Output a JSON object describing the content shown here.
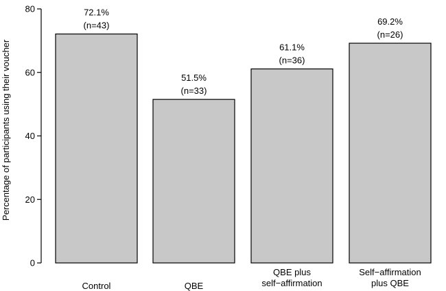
{
  "chart_data": {
    "type": "bar",
    "title": "",
    "xlabel": "",
    "ylabel": "Percentage of participants using their voucher",
    "ylim": [
      0,
      80
    ],
    "yticks": [
      0,
      20,
      40,
      60,
      80
    ],
    "grid": false,
    "categories": [
      [
        "Control"
      ],
      [
        "QBE"
      ],
      [
        "QBE plus",
        "self−affirmation"
      ],
      [
        "Self−affirmation",
        "plus QBE"
      ]
    ],
    "values": [
      72.1,
      51.5,
      61.1,
      69.2
    ],
    "data_labels": [
      [
        "72.1%",
        "(n=43)"
      ],
      [
        "51.5%",
        "(n=33)"
      ],
      [
        "61.1%",
        "(n=36)"
      ],
      [
        "69.2%",
        "(n=26)"
      ]
    ],
    "colors": {
      "bar_fill": "#c8c8c8",
      "bar_stroke": "#000000"
    }
  }
}
